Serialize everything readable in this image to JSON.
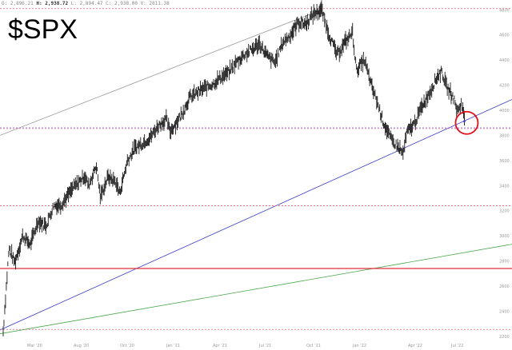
{
  "header": {
    "ticker": "$SPX",
    "ohlc": {
      "o_label": "O:",
      "o_value": "2,896.21",
      "h_label": "H:",
      "h_value": "2,938.72",
      "l_label": "L:",
      "l_value": "2,894.47",
      "c_label": "C:",
      "c_value": "2,938.00",
      "v_label": "V:",
      "v_value": "2811.38"
    }
  },
  "colors": {
    "candle": "#1a1a1a",
    "channel_line": "#999999",
    "blue_trendline": "#3a3acc",
    "green_trendline": "#4aa84a",
    "support_solid": "#e0303a",
    "dotted_line": "#e06070",
    "purple_dotted": "#8a5adb",
    "circle": "#e0101a"
  },
  "chart_data": {
    "type": "line",
    "title": "$SPX",
    "yaxis": {
      "ticks": [
        2200,
        2400,
        2600,
        2800,
        3000,
        3200,
        3400,
        3600,
        3800,
        4000,
        4200,
        4400,
        4600,
        4800
      ],
      "range": [
        2180,
        4840
      ]
    },
    "xaxis": {
      "ticks": [
        "Mar '20",
        "Aug '20",
        "Oct '20",
        "Jan '21",
        "Apr '21",
        "Jul '21",
        "Oct '21",
        "Jan '22",
        "Apr '22",
        "Jul '22"
      ]
    },
    "series": [
      {
        "points": [
          [
            0,
            2240
          ],
          [
            1.5,
            2900
          ],
          [
            3,
            2790
          ],
          [
            5,
            3000
          ],
          [
            7,
            2930
          ],
          [
            9,
            3120
          ],
          [
            11,
            3080
          ],
          [
            13,
            3240
          ],
          [
            15,
            3250
          ],
          [
            18,
            3380
          ],
          [
            21,
            3480
          ],
          [
            22,
            3400
          ],
          [
            24,
            3560
          ],
          [
            25,
            3310
          ],
          [
            27,
            3470
          ],
          [
            29,
            3430
          ],
          [
            30,
            3340
          ],
          [
            32,
            3600
          ],
          [
            34,
            3700
          ],
          [
            36,
            3740
          ],
          [
            38,
            3790
          ],
          [
            40,
            3880
          ],
          [
            42,
            3930
          ],
          [
            43,
            3830
          ],
          [
            46,
            3970
          ],
          [
            48,
            4100
          ],
          [
            50,
            4140
          ],
          [
            52,
            4180
          ],
          [
            54,
            4210
          ],
          [
            56,
            4260
          ],
          [
            58,
            4300
          ],
          [
            60,
            4380
          ],
          [
            62,
            4440
          ],
          [
            64,
            4480
          ],
          [
            66,
            4530
          ],
          [
            68,
            4430
          ],
          [
            70,
            4380
          ],
          [
            72,
            4540
          ],
          [
            74,
            4600
          ],
          [
            76,
            4700
          ],
          [
            78,
            4690
          ],
          [
            80,
            4770
          ],
          [
            82,
            4800
          ],
          [
            84,
            4600
          ],
          [
            86,
            4440
          ],
          [
            88,
            4540
          ],
          [
            90,
            4620
          ],
          [
            91,
            4320
          ],
          [
            93,
            4400
          ],
          [
            95,
            4180
          ],
          [
            96,
            4100
          ],
          [
            98,
            3900
          ],
          [
            100,
            3760
          ],
          [
            102,
            3700
          ],
          [
            103,
            3650
          ],
          [
            104,
            3820
          ],
          [
            106,
            3900
          ],
          [
            108,
            4040
          ],
          [
            110,
            4150
          ],
          [
            112,
            4280
          ],
          [
            113,
            4310
          ],
          [
            114,
            4200
          ],
          [
            116,
            4100
          ],
          [
            117,
            3990
          ],
          [
            118,
            4050
          ],
          [
            119,
            3920
          ]
        ]
      }
    ],
    "lines": [
      {
        "kind": "upper-channel",
        "from": [
          0,
          3800
        ],
        "to": [
          82,
          4800
        ]
      },
      {
        "kind": "blue-trendline",
        "from": [
          0,
          2250
        ],
        "to": [
          122,
          4000
        ]
      },
      {
        "kind": "green-trendline",
        "from": [
          0,
          2220
        ],
        "to": [
          122,
          2900
        ]
      },
      {
        "kind": "horizontal-solid",
        "y": 2740
      },
      {
        "kind": "horizontal-dotted",
        "y": 3240
      },
      {
        "kind": "horizontal-dotted",
        "y": 2255
      },
      {
        "kind": "horizontal-dotted",
        "y": 4810
      },
      {
        "kind": "horizontal-dotted-purple",
        "y": 3860
      }
    ],
    "annotation": {
      "kind": "circle",
      "center": [
        119,
        3900
      ]
    }
  }
}
